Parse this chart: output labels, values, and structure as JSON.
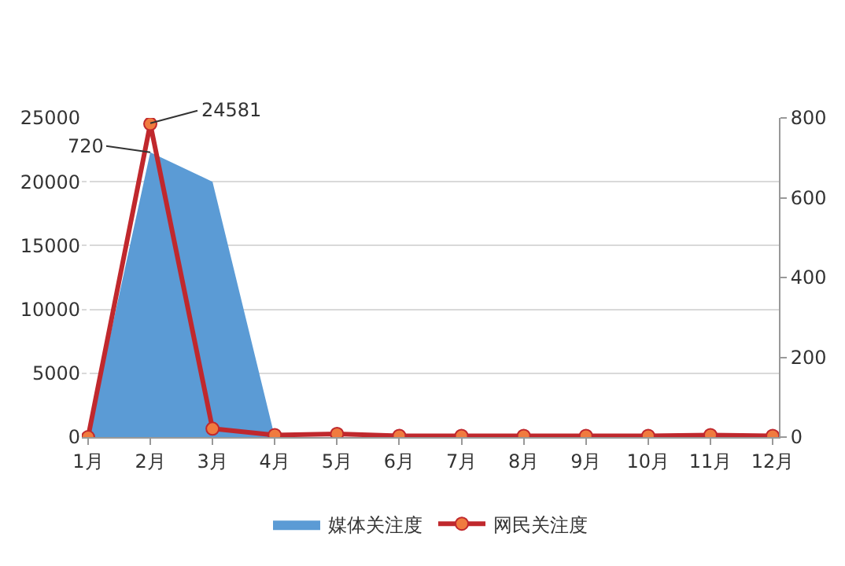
{
  "chart_data": {
    "type": "area",
    "categories": [
      "1月",
      "2月",
      "3月",
      "4月",
      "5月",
      "6月",
      "7月",
      "8月",
      "9月",
      "10月",
      "11月",
      "12月"
    ],
    "series": [
      {
        "name": "媒体关注度",
        "color": "#5b9bd5",
        "values": [
          0,
          22300,
          20000,
          0,
          0,
          0,
          0,
          0,
          0,
          0,
          200,
          0
        ]
      },
      {
        "name": "网民关注度",
        "type": "line",
        "axis": "y2",
        "color": "#c0282d",
        "marker": "circle",
        "values": [
          0,
          785,
          21,
          5,
          8,
          3,
          3,
          3,
          3,
          3,
          5,
          3
        ]
      }
    ],
    "ylim": [
      0,
      25000
    ],
    "yticks": [
      0,
      5000,
      10000,
      15000,
      20000,
      25000
    ],
    "y2lim": [
      0,
      800
    ],
    "y2ticks": [
      0,
      200,
      400,
      600,
      800
    ],
    "annotations": [
      {
        "text": "24581",
        "x": "2月",
        "y": 24581
      },
      {
        "text": "720",
        "x": "2月",
        "y": 22300
      }
    ],
    "grid": "y",
    "legend": "bottom"
  }
}
